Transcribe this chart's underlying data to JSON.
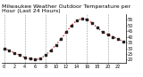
{
  "title": "Milwaukee Weather Outdoor Temperature per Hour (Last 24 Hours)",
  "hours": [
    0,
    1,
    2,
    3,
    4,
    5,
    6,
    7,
    8,
    9,
    10,
    11,
    12,
    13,
    14,
    15,
    16,
    17,
    18,
    19,
    20,
    21,
    22,
    23
  ],
  "temps": [
    30,
    28,
    26,
    24,
    22,
    21,
    20,
    21,
    24,
    28,
    33,
    38,
    44,
    50,
    54,
    56,
    55,
    52,
    48,
    44,
    42,
    40,
    38,
    36
  ],
  "line_color": "#cc0000",
  "marker_color": "#222222",
  "bg_color": "#ffffff",
  "grid_color": "#999999",
  "title_color": "#000000",
  "ylim": [
    17,
    60
  ],
  "yticks": [
    20,
    25,
    30,
    35,
    40,
    45,
    50,
    55
  ],
  "ytick_labels": [
    "20",
    "25",
    "30",
    "35",
    "40",
    "45",
    "50",
    "55"
  ],
  "xticks": [
    0,
    2,
    4,
    6,
    8,
    10,
    12,
    14,
    16,
    18,
    20,
    22
  ],
  "vgrid_positions": [
    0,
    4,
    8,
    12,
    16,
    20
  ],
  "title_fontsize": 4.5,
  "tick_fontsize": 3.5,
  "figsize": [
    1.6,
    0.87
  ],
  "dpi": 100
}
